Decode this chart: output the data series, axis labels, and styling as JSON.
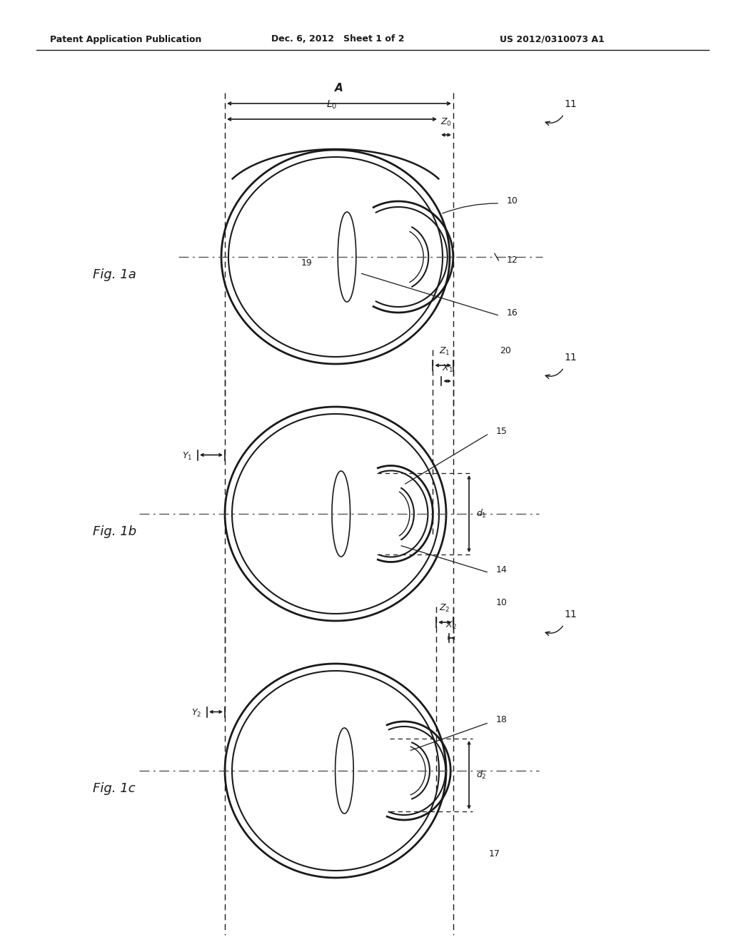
{
  "background_color": "#ffffff",
  "header_left": "Patent Application Publication",
  "header_mid": "Dec. 6, 2012   Sheet 1 of 2",
  "header_right": "US 2012/0310073 A1",
  "line_color": "#1a1a1a",
  "dash_color": "#555555",
  "fig_labels": [
    "Fig. 1a",
    "Fig. 1b",
    "Fig. 1c"
  ],
  "ref_numbers_1a": [
    "10",
    "12",
    "16",
    "19",
    "20"
  ],
  "ref_numbers_1b": [
    "15",
    "14",
    "10"
  ],
  "ref_numbers_1c": [
    "18",
    "17"
  ]
}
